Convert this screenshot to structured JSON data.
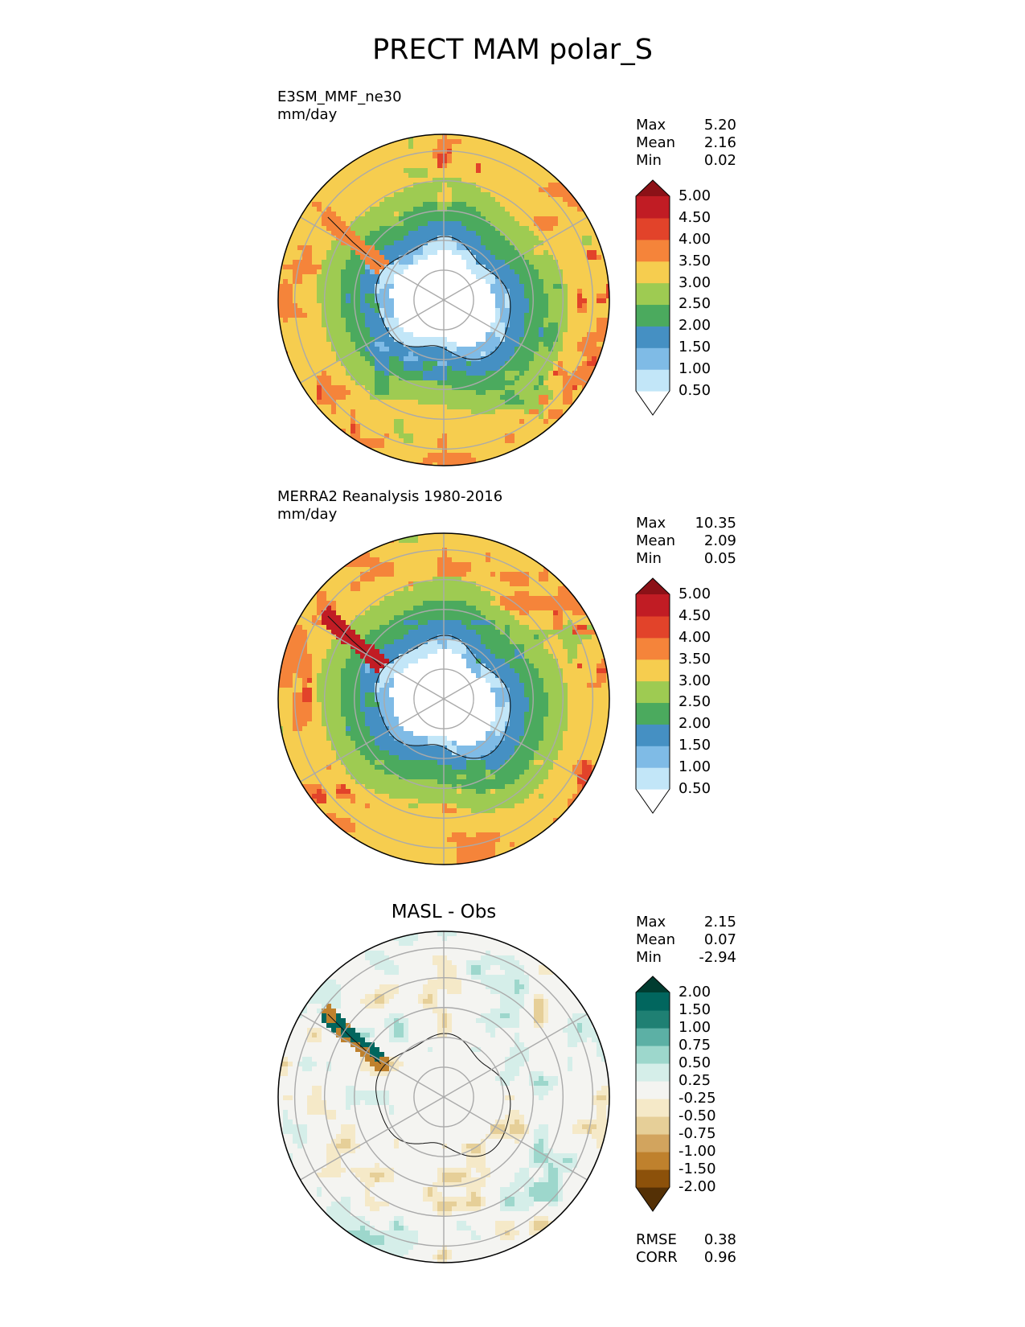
{
  "title": "PRECT MAM polar_S",
  "chart_data": [
    {
      "type": "heatmap",
      "projection": "south polar stereographic",
      "name": "E3SM_MMF_ne30",
      "units": "mm/day",
      "stats": [
        {
          "label": "Max",
          "value": "5.20"
        },
        {
          "label": "Mean",
          "value": "2.16"
        },
        {
          "label": "Min",
          "value": "0.02"
        }
      ],
      "colorbar": {
        "levels": [
          "0.50",
          "1.00",
          "1.50",
          "2.00",
          "2.50",
          "3.00",
          "3.50",
          "4.00",
          "4.50",
          "5.00"
        ],
        "colors": [
          "#ffffff",
          "#c2e6f8",
          "#7fbbe6",
          "#4590c3",
          "#4baa5e",
          "#9ecb52",
          "#f6cd4f",
          "#f5843a",
          "#e2432a",
          "#c11c24",
          "#8c1117"
        ],
        "extend": "both"
      },
      "field": "precip"
    },
    {
      "type": "heatmap",
      "projection": "south polar stereographic",
      "name": "MERRA2 Reanalysis 1980-2016",
      "units": "mm/day",
      "stats": [
        {
          "label": "Max",
          "value": "10.35"
        },
        {
          "label": "Mean",
          "value": "2.09"
        },
        {
          "label": "Min",
          "value": "0.05"
        }
      ],
      "colorbar": {
        "levels": [
          "0.50",
          "1.00",
          "1.50",
          "2.00",
          "2.50",
          "3.00",
          "3.50",
          "4.00",
          "4.50",
          "5.00"
        ],
        "colors": [
          "#ffffff",
          "#c2e6f8",
          "#7fbbe6",
          "#4590c3",
          "#4baa5e",
          "#9ecb52",
          "#f6cd4f",
          "#f5843a",
          "#e2432a",
          "#c11c24",
          "#8c1117"
        ],
        "extend": "both"
      },
      "field": "precip"
    },
    {
      "type": "heatmap",
      "projection": "south polar stereographic",
      "title": "MASL - Obs",
      "stats": [
        {
          "label": "Max",
          "value": "2.15"
        },
        {
          "label": "Mean",
          "value": "0.07"
        },
        {
          "label": "Min",
          "value": "-2.94"
        }
      ],
      "metrics": [
        {
          "label": "RMSE",
          "value": "0.38"
        },
        {
          "label": "CORR",
          "value": "0.96"
        }
      ],
      "colorbar": {
        "levels": [
          "-2.00",
          "-1.50",
          "-1.00",
          "-0.75",
          "-0.50",
          "-0.25",
          "0.25",
          "0.50",
          "0.75",
          "1.00",
          "1.50",
          "2.00"
        ],
        "colors": [
          "#543005",
          "#8c510a",
          "#bf812d",
          "#d2a45e",
          "#e6cf98",
          "#f5e9c8",
          "#f4f4f1",
          "#d5eee9",
          "#9dd7cc",
          "#5cb0a5",
          "#1f8073",
          "#01665e",
          "#003c30"
        ],
        "extend": "both"
      },
      "field": "diff"
    }
  ]
}
